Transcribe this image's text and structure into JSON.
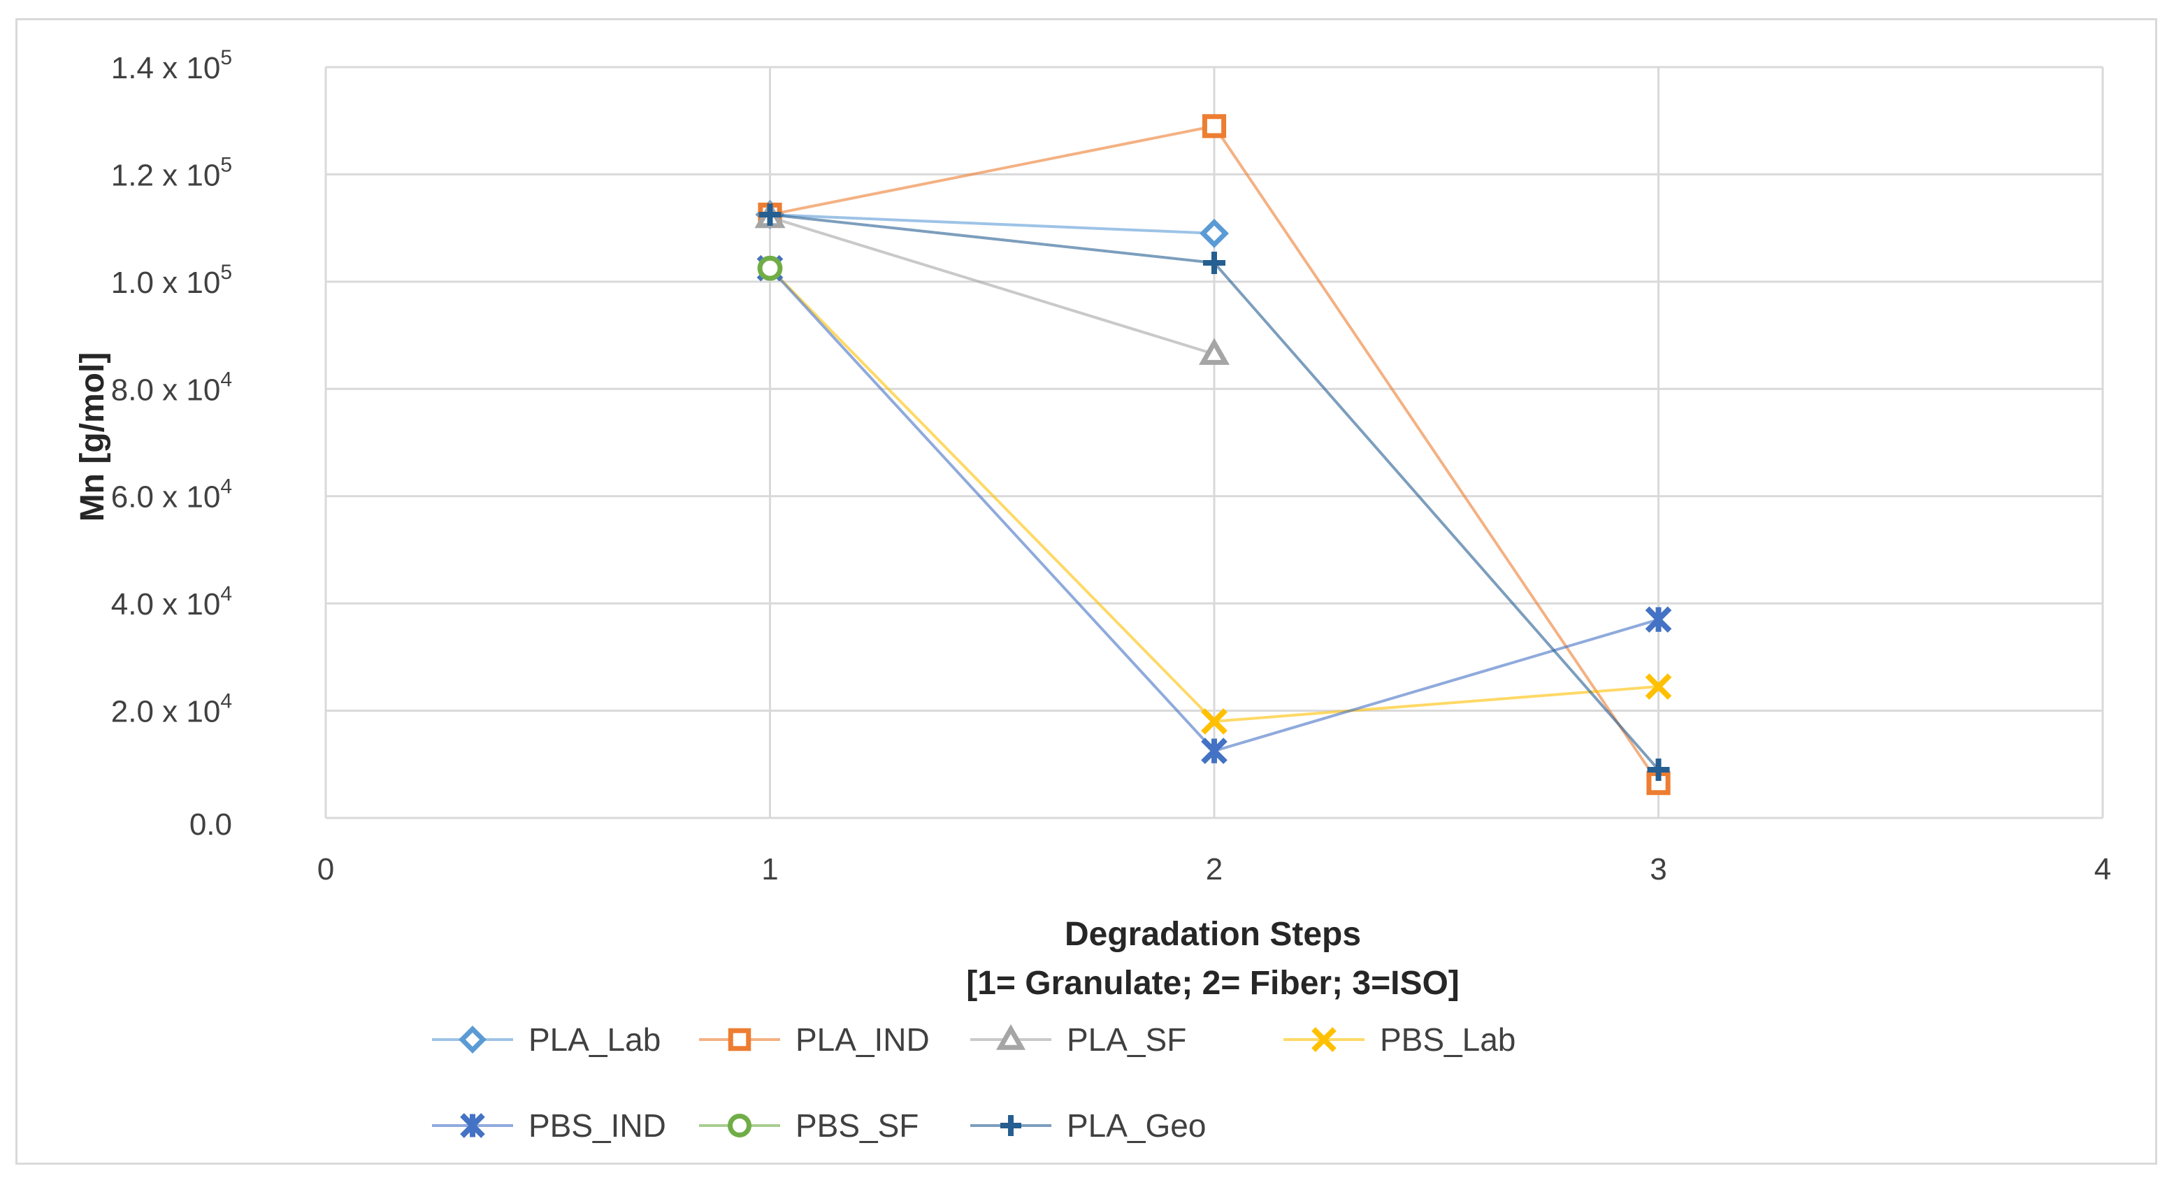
{
  "chart_data": {
    "type": "scatter",
    "title": "",
    "xlabel_lines": [
      "Degradation Steps",
      "[1= Granulate; 2= Fiber; 3=ISO]"
    ],
    "ylabel": "Mn [g/mol]",
    "xlim": [
      0,
      4
    ],
    "ylim": [
      0,
      140000
    ],
    "grid": true,
    "legend_position": "bottom",
    "x_ticks": [
      {
        "value": 0,
        "label": "0"
      },
      {
        "value": 1,
        "label": "1"
      },
      {
        "value": 2,
        "label": "2"
      },
      {
        "value": 3,
        "label": "3"
      },
      {
        "value": 4,
        "label": "4"
      }
    ],
    "y_ticks": [
      {
        "value": 0,
        "label": "0.0"
      },
      {
        "value": 20000,
        "mantissa": "2.0",
        "base": "x 10",
        "exp": "4"
      },
      {
        "value": 40000,
        "mantissa": "4.0",
        "base": "x 10",
        "exp": "4"
      },
      {
        "value": 60000,
        "mantissa": "6.0",
        "base": "x 10",
        "exp": "4"
      },
      {
        "value": 80000,
        "mantissa": "8.0",
        "base": "x 10",
        "exp": "4"
      },
      {
        "value": 100000,
        "mantissa": "1.0",
        "base": "x 10",
        "exp": "5"
      },
      {
        "value": 120000,
        "mantissa": "1.2",
        "base": "x 10",
        "exp": "5"
      },
      {
        "value": 140000,
        "mantissa": "1.4",
        "base": "x 10",
        "exp": "5"
      }
    ],
    "series": [
      {
        "name": "PLA_Lab",
        "marker": "diamond",
        "color": "#5B9BD5",
        "x": [
          1,
          2
        ],
        "y": [
          112500,
          109000
        ]
      },
      {
        "name": "PLA_IND",
        "marker": "square",
        "color": "#ED7D31",
        "x": [
          1,
          2,
          3
        ],
        "y": [
          112500,
          129000,
          6500
        ]
      },
      {
        "name": "PLA_SF",
        "marker": "triangle",
        "color": "#A5A5A5",
        "x": [
          1,
          2
        ],
        "y": [
          112000,
          86500
        ]
      },
      {
        "name": "PBS_Lab",
        "marker": "x",
        "color": "#FFC000",
        "x": [
          1,
          2,
          3
        ],
        "y": [
          102500,
          18000,
          24500
        ]
      },
      {
        "name": "PBS_IND",
        "marker": "star",
        "color": "#4472C4",
        "x": [
          1,
          2,
          3
        ],
        "y": [
          102500,
          12500,
          37000
        ]
      },
      {
        "name": "PBS_SF",
        "marker": "circle",
        "color": "#70AD47",
        "x": [
          1
        ],
        "y": [
          102500
        ]
      },
      {
        "name": "PLA_Geo",
        "marker": "plus",
        "color": "#255E91",
        "x": [
          1,
          2,
          3
        ],
        "y": [
          112500,
          103500,
          9000
        ]
      }
    ]
  }
}
